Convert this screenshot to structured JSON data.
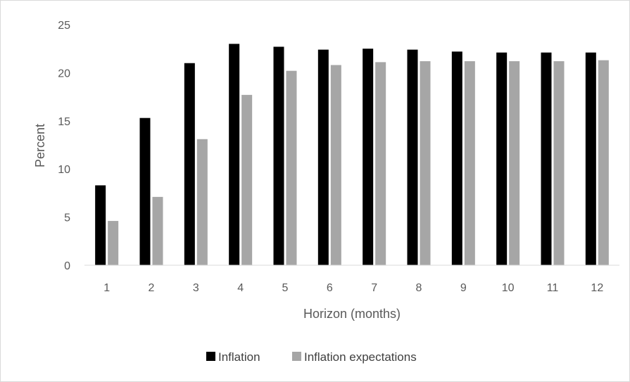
{
  "chart_data": {
    "type": "bar",
    "title": "",
    "xlabel": "Horizon (months)",
    "ylabel": "Percent",
    "ylim": [
      0,
      25
    ],
    "yticks": [
      0,
      5,
      10,
      15,
      20,
      25
    ],
    "categories": [
      "1",
      "2",
      "3",
      "4",
      "5",
      "6",
      "7",
      "8",
      "9",
      "10",
      "11",
      "12"
    ],
    "series": [
      {
        "name": "Inflation",
        "color": "#000000",
        "values": [
          8.3,
          15.3,
          21.0,
          23.0,
          22.7,
          22.4,
          22.5,
          22.4,
          22.2,
          22.1,
          22.1,
          22.1
        ]
      },
      {
        "name": "Inflation expectations",
        "color": "#a6a6a6",
        "values": [
          4.6,
          7.1,
          13.1,
          17.7,
          20.2,
          20.8,
          21.1,
          21.2,
          21.2,
          21.2,
          21.2,
          21.3
        ]
      }
    ],
    "grid": false,
    "legend": "bottom"
  }
}
